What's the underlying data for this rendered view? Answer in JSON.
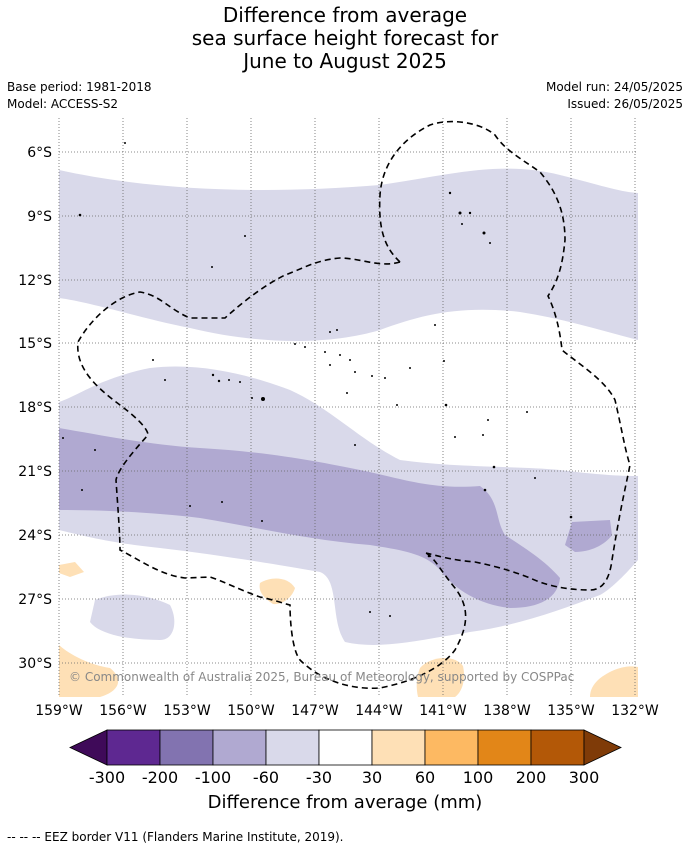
{
  "header": {
    "title_lines": [
      "Difference from average",
      "sea surface height forecast for",
      "June to August 2025"
    ],
    "base_period": "Base period: 1981-2018",
    "model": "Model: ACCESS-S2",
    "model_run": "Model run: 24/05/2025",
    "issued": "Issued: 26/05/2025"
  },
  "map": {
    "lon_ticks": [
      "159°W",
      "156°W",
      "153°W",
      "150°W",
      "147°W",
      "144°W",
      "141°W",
      "138°W",
      "135°W",
      "132°W"
    ],
    "lat_ticks": [
      "6°S",
      "9°S",
      "12°S",
      "15°S",
      "18°S",
      "21°S",
      "24°S",
      "27°S",
      "30°S"
    ],
    "copyright": "© Commonwealth of Australia 2025, Bureau of Meteorology, supported by COSPPac"
  },
  "colorbar": {
    "tick_labels": [
      "-300",
      "-200",
      "-100",
      "-60",
      "-30",
      "30",
      "60",
      "100",
      "200",
      "300"
    ],
    "label": "Difference from average (mm)",
    "colors": [
      "#3f0a59",
      "#5e2891",
      "#8273b0",
      "#b0a9d1",
      "#d9d9ea",
      "#ffffff",
      "#fee0b6",
      "#fdb962",
      "#e28618",
      "#b35807",
      "#7f3b08"
    ]
  },
  "footnote": "--  --  -- EEZ border V11 (Flanders Marine Institute, 2019)."
}
